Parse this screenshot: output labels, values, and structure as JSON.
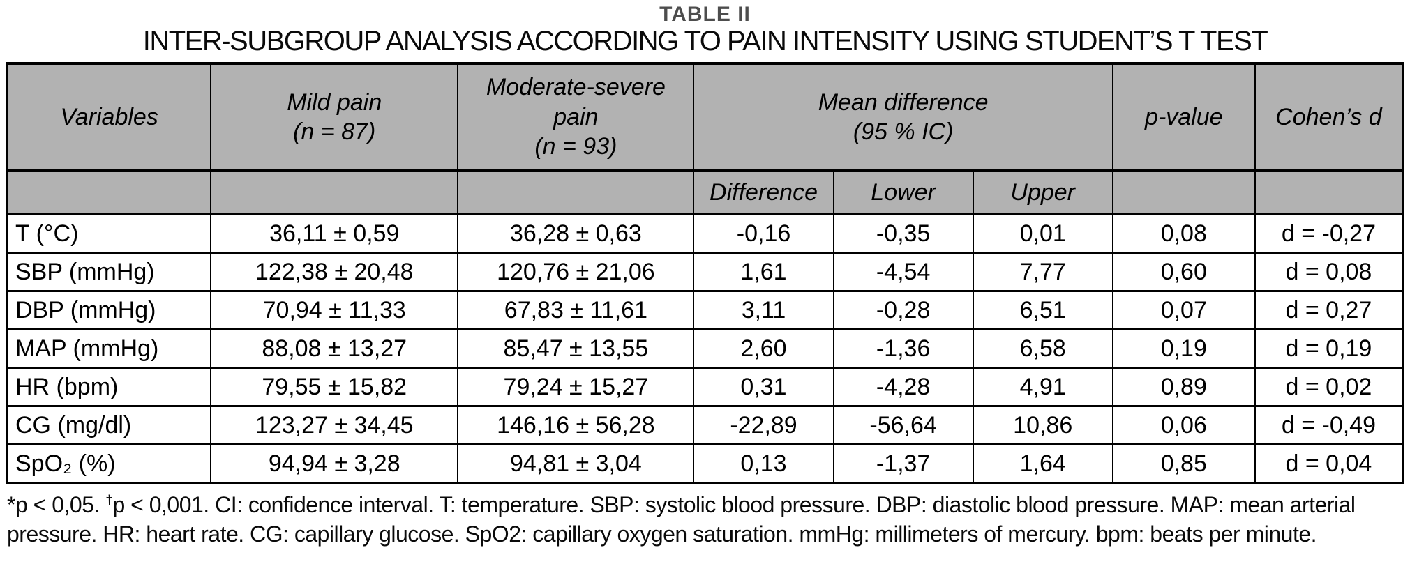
{
  "title": "TABLE II",
  "subtitle": "INTER-SUBGROUP ANALYSIS ACCORDING TO PAIN INTENSITY USING STUDENT’S T TEST",
  "colors": {
    "header_bg": "#b2b2b2",
    "title_color": "#4d4d4d",
    "border": "#000000"
  },
  "table": {
    "header": {
      "variables": "Variables",
      "mild": "Mild pain\n(n = 87)",
      "moderate": "Moderate-severe\npain\n(n = 93)",
      "mean_difference": "Mean difference\n(95 % IC)",
      "p_value": "p-value",
      "cohens_d": "Cohen’s d",
      "difference": "Difference",
      "lower": "Lower",
      "upper": "Upper"
    },
    "rows": [
      {
        "variable": "T (°C)",
        "mild": "36,11 ± 0,59",
        "moderate": "36,28 ± 0,63",
        "difference": "-0,16",
        "lower": "-0,35",
        "upper": "0,01",
        "p_value": "0,08",
        "cohens_d": "d = -0,27"
      },
      {
        "variable": "SBP (mmHg)",
        "mild": "122,38 ± 20,48",
        "moderate": "120,76 ± 21,06",
        "difference": "1,61",
        "lower": "-4,54",
        "upper": "7,77",
        "p_value": "0,60",
        "cohens_d": "d = 0,08"
      },
      {
        "variable": "DBP (mmHg)",
        "mild": "70,94 ± 11,33",
        "moderate": "67,83 ± 11,61",
        "difference": "3,11",
        "lower": "-0,28",
        "upper": "6,51",
        "p_value": "0,07",
        "cohens_d": "d = 0,27"
      },
      {
        "variable": "MAP (mmHg)",
        "mild": "88,08 ± 13,27",
        "moderate": "85,47 ± 13,55",
        "difference": "2,60",
        "lower": "-1,36",
        "upper": "6,58",
        "p_value": "0,19",
        "cohens_d": "d = 0,19"
      },
      {
        "variable": "HR (bpm)",
        "mild": "79,55 ± 15,82",
        "moderate": "79,24 ± 15,27",
        "difference": "0,31",
        "lower": "-4,28",
        "upper": "4,91",
        "p_value": "0,89",
        "cohens_d": "d = 0,02"
      },
      {
        "variable": "CG (mg/dl)",
        "mild": "123,27 ± 34,45",
        "moderate": "146,16 ± 56,28",
        "difference": "-22,89",
        "lower": "-56,64",
        "upper": "10,86",
        "p_value": "0,06",
        "cohens_d": "d = -0,49"
      },
      {
        "variable": "SpO₂ (%)",
        "mild": "94,94 ± 3,28",
        "moderate": "94,81 ± 3,04",
        "difference": "0,13",
        "lower": "-1,37",
        "upper": "1,64",
        "p_value": "0,85",
        "cohens_d": "d = 0,04"
      }
    ]
  },
  "footnote": {
    "star": "*",
    "seg1": "p < 0,05. ",
    "dagger": "†",
    "seg2": "p < 0,001. CI: confidence interval. T: temperature. SBP: systolic blood pressure. DBP: diastolic blood pressure. MAP: mean arterial pressure. HR: heart rate. CG: capillary glucose. SpO2: capillary oxygen saturation. mmHg: millimeters of mercury. bpm: beats per minute."
  }
}
